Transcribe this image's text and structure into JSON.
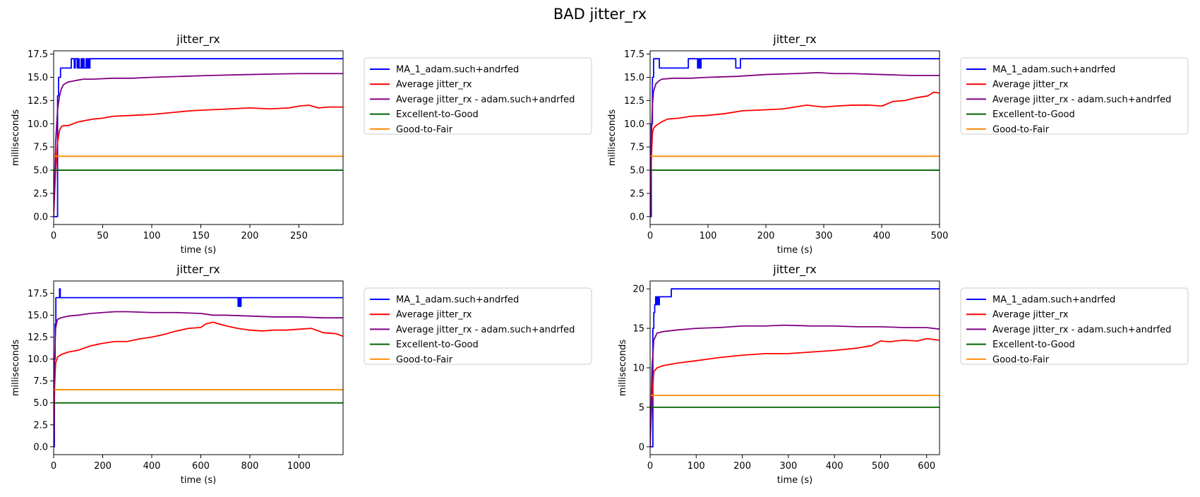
{
  "figure": {
    "title": "BAD jitter_rx",
    "colors": {
      "MA_1_adam.such+andrfed": "#0000ff",
      "Average jitter_rx": "#ff0000",
      "Average jitter_rx - adam.such+andrfed": "#800080",
      "Excellent-to-Good": "#006400",
      "Good-to-Fair": "#ff8c00"
    }
  },
  "chart_data": [
    {
      "type": "line",
      "title": "jitter_rx",
      "xlabel": "time (s)",
      "ylabel": "milliseconds",
      "xlim": [
        0,
        295
      ],
      "ylim": [
        -0.85,
        17.85
      ],
      "xticks": [
        0,
        50,
        100,
        150,
        200,
        250
      ],
      "yticks": [
        0.0,
        2.5,
        5.0,
        7.5,
        10.0,
        12.5,
        15.0,
        17.5
      ],
      "tick_format": "1dp",
      "legend": [
        "MA_1_adam.such+andrfed",
        "Average jitter_rx",
        "Average jitter_rx - adam.such+andrfed",
        "Excellent-to-Good",
        "Good-to-Fair"
      ],
      "legend_position": "outside-right",
      "series": [
        {
          "name": "MA_1_adam.such+andrfed",
          "step": true,
          "x": [
            0,
            3,
            4,
            5,
            6,
            7,
            17,
            18,
            20,
            21,
            22,
            23,
            24,
            25,
            26,
            27,
            28,
            29,
            30,
            31,
            32,
            33,
            34,
            35,
            36,
            37,
            38,
            295
          ],
          "y": [
            0,
            0,
            13,
            15,
            15,
            16,
            16,
            17,
            17,
            16,
            17,
            17,
            16,
            17,
            16,
            16,
            17,
            16,
            17,
            16,
            16,
            17,
            16,
            17,
            16,
            17,
            17,
            17
          ]
        },
        {
          "name": "Average jitter_rx",
          "x": [
            0,
            2,
            4,
            6,
            8,
            10,
            15,
            20,
            25,
            30,
            40,
            50,
            60,
            80,
            100,
            120,
            140,
            160,
            180,
            200,
            220,
            240,
            250,
            260,
            270,
            280,
            295
          ],
          "y": [
            0,
            5,
            8,
            9.3,
            9.7,
            9.8,
            9.8,
            10.0,
            10.2,
            10.3,
            10.5,
            10.6,
            10.8,
            10.9,
            11.0,
            11.2,
            11.4,
            11.5,
            11.6,
            11.7,
            11.6,
            11.7,
            11.9,
            12.0,
            11.7,
            11.8,
            11.8
          ]
        },
        {
          "name": "Average jitter_rx - adam.such+andrfed",
          "x": [
            0,
            2,
            4,
            6,
            8,
            10,
            15,
            20,
            25,
            30,
            40,
            60,
            80,
            100,
            130,
            160,
            200,
            250,
            295
          ],
          "y": [
            0,
            8,
            11.5,
            13,
            13.8,
            14.2,
            14.5,
            14.6,
            14.7,
            14.8,
            14.8,
            14.9,
            14.9,
            15.0,
            15.1,
            15.2,
            15.3,
            15.4,
            15.4
          ]
        },
        {
          "name": "Excellent-to-Good",
          "x": [
            0,
            295
          ],
          "y": [
            5,
            5
          ]
        },
        {
          "name": "Good-to-Fair",
          "x": [
            0,
            295
          ],
          "y": [
            6.5,
            6.5
          ]
        }
      ]
    },
    {
      "type": "line",
      "title": "jitter_rx",
      "xlabel": "time (s)",
      "ylabel": "milliseconds",
      "xlim": [
        0,
        500
      ],
      "ylim": [
        -0.85,
        17.85
      ],
      "xticks": [
        0,
        100,
        200,
        300,
        400,
        500
      ],
      "yticks": [
        0.0,
        2.5,
        5.0,
        7.5,
        10.0,
        12.5,
        15.0,
        17.5
      ],
      "tick_format": "1dp",
      "legend": [
        "MA_1_adam.such+andrfed",
        "Average jitter_rx",
        "Average jitter_rx - adam.such+andrfed",
        "Excellent-to-Good",
        "Good-to-Fair"
      ],
      "legend_position": "outside-right",
      "series": [
        {
          "name": "MA_1_adam.such+andrfed",
          "step": true,
          "x": [
            0,
            2,
            4,
            6,
            14,
            16,
            64,
            66,
            80,
            82,
            84,
            86,
            88,
            146,
            148,
            154,
            156,
            500
          ],
          "y": [
            0,
            10,
            15,
            17,
            17,
            16,
            16,
            17,
            17,
            16,
            17,
            16,
            17,
            17,
            16,
            16,
            17,
            17
          ]
        },
        {
          "name": "Average jitter_rx",
          "x": [
            0,
            2,
            4,
            6,
            10,
            15,
            20,
            30,
            50,
            70,
            100,
            130,
            160,
            200,
            230,
            250,
            270,
            300,
            320,
            350,
            380,
            400,
            420,
            440,
            460,
            480,
            490,
            500
          ],
          "y": [
            0,
            6,
            9,
            9.5,
            9.8,
            10.0,
            10.2,
            10.5,
            10.6,
            10.8,
            10.9,
            11.1,
            11.4,
            11.5,
            11.6,
            11.8,
            12.0,
            11.8,
            11.9,
            12.0,
            12.0,
            11.9,
            12.4,
            12.5,
            12.8,
            13.0,
            13.4,
            13.3
          ]
        },
        {
          "name": "Average jitter_rx - adam.such+andrfed",
          "x": [
            0,
            2,
            4,
            6,
            10,
            15,
            20,
            40,
            70,
            100,
            150,
            200,
            250,
            290,
            320,
            350,
            400,
            450,
            500
          ],
          "y": [
            0,
            8,
            12,
            13.5,
            14.3,
            14.6,
            14.8,
            14.9,
            14.9,
            15.0,
            15.1,
            15.3,
            15.4,
            15.5,
            15.4,
            15.4,
            15.3,
            15.2,
            15.2
          ]
        },
        {
          "name": "Excellent-to-Good",
          "x": [
            0,
            500
          ],
          "y": [
            5,
            5
          ]
        },
        {
          "name": "Good-to-Fair",
          "x": [
            0,
            500
          ],
          "y": [
            6.5,
            6.5
          ]
        }
      ]
    },
    {
      "type": "line",
      "title": "jitter_rx",
      "xlabel": "time (s)",
      "ylabel": "milliseconds",
      "xlim": [
        0,
        1180
      ],
      "ylim": [
        -0.9,
        18.9
      ],
      "xticks": [
        0,
        200,
        400,
        600,
        800,
        1000
      ],
      "yticks": [
        0.0,
        2.5,
        5.0,
        7.5,
        10.0,
        12.5,
        15.0,
        17.5
      ],
      "tick_format": "1dp",
      "legend": [
        "MA_1_adam.such+andrfed",
        "Average jitter_rx",
        "Average jitter_rx - adam.such+andrfed",
        "Excellent-to-Good",
        "Good-to-Fair"
      ],
      "legend_position": "outside-right",
      "series": [
        {
          "name": "MA_1_adam.such+andrfed",
          "step": true,
          "x": [
            0,
            3,
            6,
            9,
            22,
            24,
            27,
            30,
            750,
            752,
            756,
            760,
            764,
            768,
            1180
          ],
          "y": [
            0,
            10,
            14,
            17,
            17,
            18,
            17,
            17,
            17,
            16,
            17,
            16,
            17,
            17,
            17
          ]
        },
        {
          "name": "Average jitter_rx",
          "x": [
            0,
            4,
            8,
            15,
            30,
            60,
            100,
            150,
            200,
            250,
            300,
            350,
            400,
            450,
            500,
            550,
            600,
            620,
            650,
            700,
            750,
            800,
            850,
            900,
            950,
            1000,
            1050,
            1100,
            1150,
            1180
          ],
          "y": [
            0,
            7,
            9.5,
            10.2,
            10.5,
            10.8,
            11.0,
            11.5,
            11.8,
            12.0,
            12.0,
            12.3,
            12.5,
            12.8,
            13.2,
            13.5,
            13.6,
            14.0,
            14.2,
            13.8,
            13.5,
            13.3,
            13.2,
            13.3,
            13.3,
            13.4,
            13.5,
            13.0,
            12.9,
            12.6
          ]
        },
        {
          "name": "Average jitter_rx - adam.such+andrfed",
          "x": [
            0,
            4,
            8,
            15,
            30,
            60,
            100,
            150,
            200,
            250,
            300,
            400,
            500,
            600,
            650,
            700,
            800,
            900,
            1000,
            1100,
            1180
          ],
          "y": [
            0,
            10,
            13.5,
            14.5,
            14.7,
            14.9,
            15.0,
            15.2,
            15.3,
            15.4,
            15.4,
            15.3,
            15.3,
            15.2,
            15.0,
            15.0,
            14.9,
            14.8,
            14.8,
            14.7,
            14.7
          ]
        },
        {
          "name": "Excellent-to-Good",
          "x": [
            0,
            1180
          ],
          "y": [
            5,
            5
          ]
        },
        {
          "name": "Good-to-Fair",
          "x": [
            0,
            1180
          ],
          "y": [
            6.5,
            6.5
          ]
        }
      ]
    },
    {
      "type": "line",
      "title": "jitter_rx",
      "xlabel": "time (s)",
      "ylabel": "milliseconds",
      "xlim": [
        0,
        628
      ],
      "ylim": [
        -1.0,
        21.0
      ],
      "xticks": [
        0,
        100,
        200,
        300,
        400,
        500,
        600
      ],
      "yticks": [
        0,
        5,
        10,
        15,
        20
      ],
      "tick_format": "int",
      "legend": [
        "MA_1_adam.such+andrfed",
        "Average jitter_rx",
        "Average jitter_rx - adam.such+andrfed",
        "Excellent-to-Good",
        "Good-to-Fair"
      ],
      "legend_position": "outside-right",
      "series": [
        {
          "name": "MA_1_adam.such+andrfed",
          "step": true,
          "x": [
            0,
            5,
            6,
            8,
            10,
            12,
            14,
            16,
            18,
            20,
            22,
            45,
            46,
            628
          ],
          "y": [
            0,
            0,
            15,
            17,
            18,
            19,
            18,
            19,
            18,
            19,
            19,
            19,
            20,
            20
          ]
        },
        {
          "name": "Average jitter_rx",
          "x": [
            0,
            4,
            8,
            15,
            30,
            60,
            100,
            150,
            200,
            250,
            300,
            350,
            400,
            450,
            480,
            500,
            520,
            550,
            580,
            600,
            628
          ],
          "y": [
            0,
            6,
            9.5,
            10.0,
            10.3,
            10.6,
            10.9,
            11.3,
            11.6,
            11.8,
            11.8,
            12.0,
            12.2,
            12.5,
            12.8,
            13.4,
            13.3,
            13.5,
            13.4,
            13.7,
            13.5
          ]
        },
        {
          "name": "Average jitter_rx - adam.such+andrfed",
          "x": [
            0,
            4,
            8,
            15,
            30,
            60,
            100,
            150,
            200,
            250,
            290,
            350,
            400,
            450,
            500,
            550,
            600,
            628
          ],
          "y": [
            0,
            10,
            13.5,
            14.4,
            14.6,
            14.8,
            15.0,
            15.1,
            15.3,
            15.3,
            15.4,
            15.3,
            15.3,
            15.2,
            15.2,
            15.1,
            15.1,
            14.9
          ]
        },
        {
          "name": "Excellent-to-Good",
          "x": [
            0,
            628
          ],
          "y": [
            5,
            5
          ]
        },
        {
          "name": "Good-to-Fair",
          "x": [
            0,
            628
          ],
          "y": [
            6.5,
            6.5
          ]
        }
      ]
    }
  ]
}
